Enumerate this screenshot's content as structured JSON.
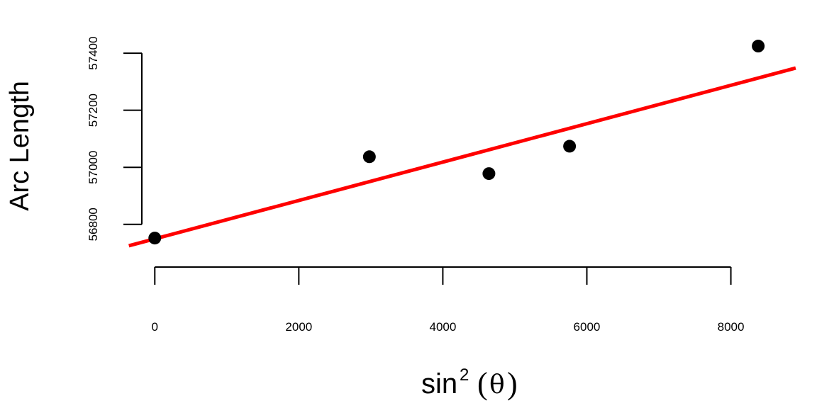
{
  "chart_data": {
    "type": "scatter",
    "xlabel": {
      "base": "sin",
      "superscript": "2",
      "open_paren": "(",
      "symbol": "θ",
      "close_paren": ")"
    },
    "ylabel": "Arc Length",
    "xlim": [
      -180,
      8950
    ],
    "ylim": [
      56710,
      57440
    ],
    "x_ticks": [
      0,
      2000,
      4000,
      6000,
      8000
    ],
    "y_ticks": [
      56800,
      57000,
      57200,
      57400
    ],
    "grid": false,
    "legend": "none",
    "series": [
      {
        "points": [
          {
            "x": 0,
            "y": 56752
          },
          {
            "x": 2980,
            "y": 57037
          },
          {
            "x": 4640,
            "y": 56978
          },
          {
            "x": 5760,
            "y": 57074
          },
          {
            "x": 8380,
            "y": 57425
          }
        ],
        "color": "#000000"
      }
    ],
    "fit_line": {
      "from": {
        "x": -360,
        "y": 56725
      },
      "to": {
        "x": 8900,
        "y": 57348
      },
      "color": "#ff0000"
    }
  }
}
